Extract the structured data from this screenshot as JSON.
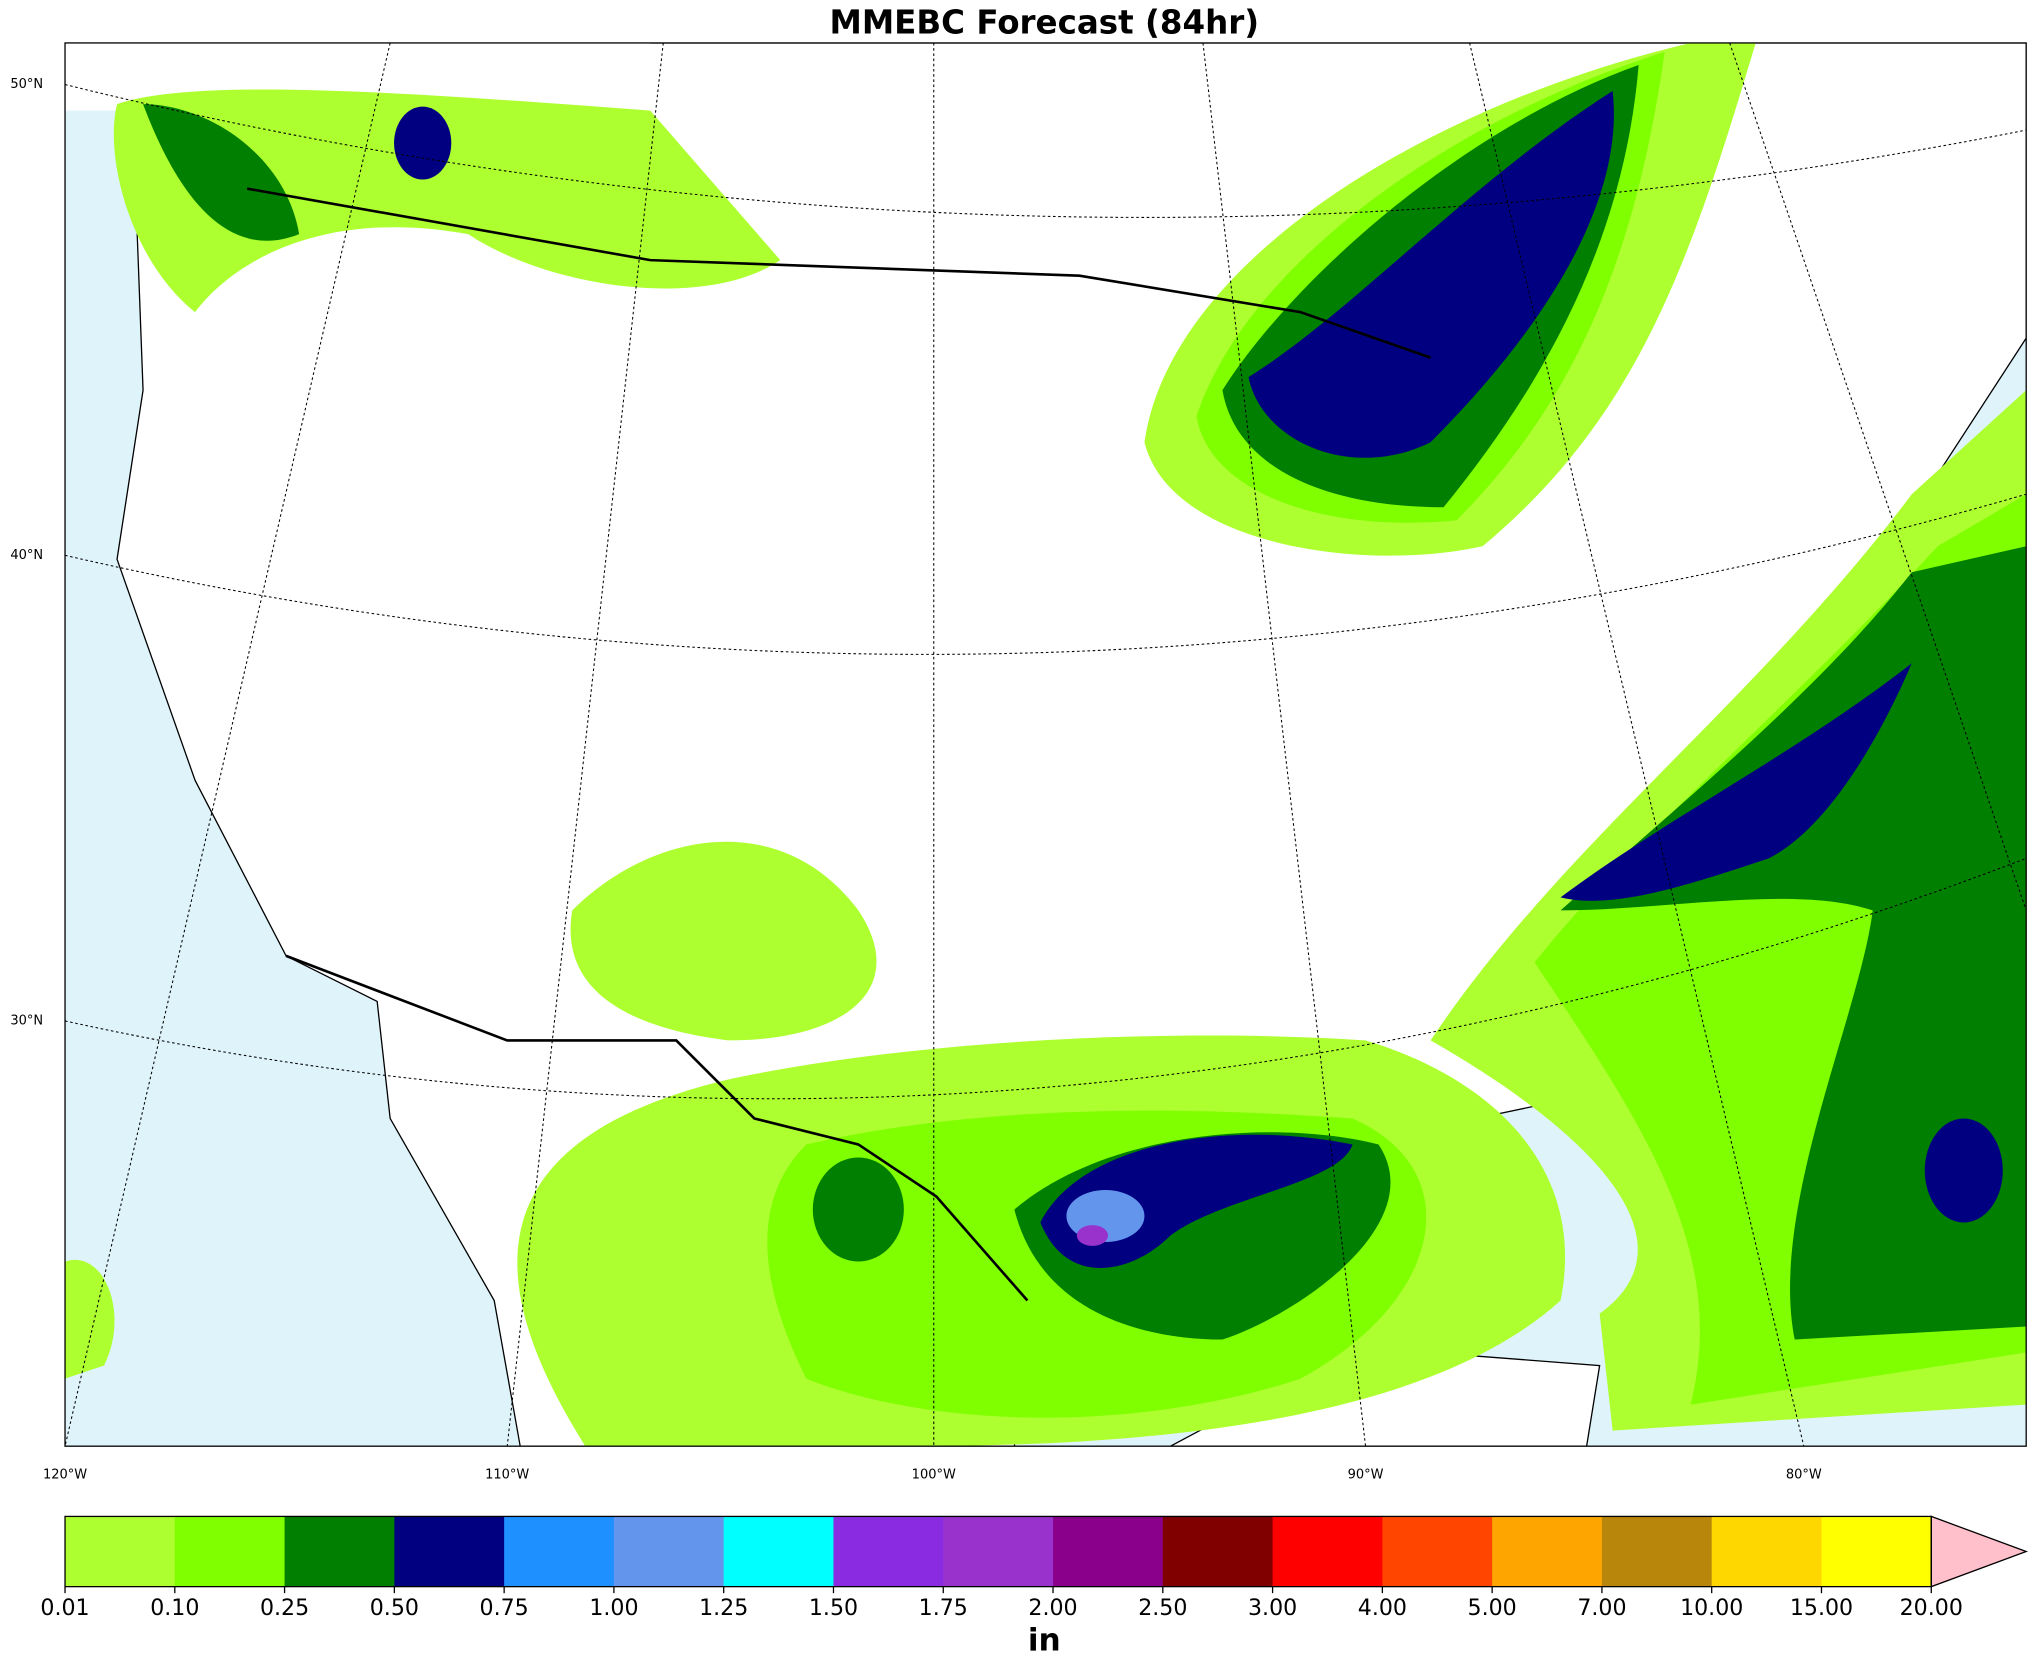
{
  "title": "MMEBC Forecast (84hr)",
  "map": {
    "lat_labels": [
      "50°N",
      "40°N",
      "30°N"
    ],
    "lon_labels": [
      "120°W",
      "110°W",
      "100°W",
      "90°W",
      "80°W"
    ]
  },
  "colorbar": {
    "unit": "in",
    "levels": [
      {
        "value": 0.01,
        "label": "0.01"
      },
      {
        "value": 0.1,
        "label": "0.10"
      },
      {
        "value": 0.25,
        "label": "0.25"
      },
      {
        "value": 0.5,
        "label": "0.50"
      },
      {
        "value": 0.75,
        "label": "0.75"
      },
      {
        "value": 1,
        "label": "1.00"
      },
      {
        "value": 1.25,
        "label": "1.25"
      },
      {
        "value": 1.5,
        "label": "1.50"
      },
      {
        "value": 1.75,
        "label": "1.75"
      },
      {
        "value": 2,
        "label": "2.00"
      },
      {
        "value": 2.5,
        "label": "2.50"
      },
      {
        "value": 3,
        "label": "3.00"
      },
      {
        "value": 4,
        "label": "4.00"
      },
      {
        "value": 5,
        "label": "5.00"
      },
      {
        "value": 7,
        "label": "7.00"
      },
      {
        "value": 10,
        "label": "10.00"
      },
      {
        "value": 15,
        "label": "15.00"
      },
      {
        "value": 20,
        "label": "20.00"
      }
    ],
    "colors": [
      "#adff2f",
      "#7fff00",
      "#007f00",
      "#000080",
      "#1e90ff",
      "#6495ed",
      "#00ffff",
      "#8a2be2",
      "#9932cc",
      "#8b008b",
      "#800000",
      "#ff0000",
      "#ff4500",
      "#ffa500",
      "#b8860b",
      "#ffd700",
      "#ffff00"
    ],
    "over_color": "#ffc0cb"
  }
}
